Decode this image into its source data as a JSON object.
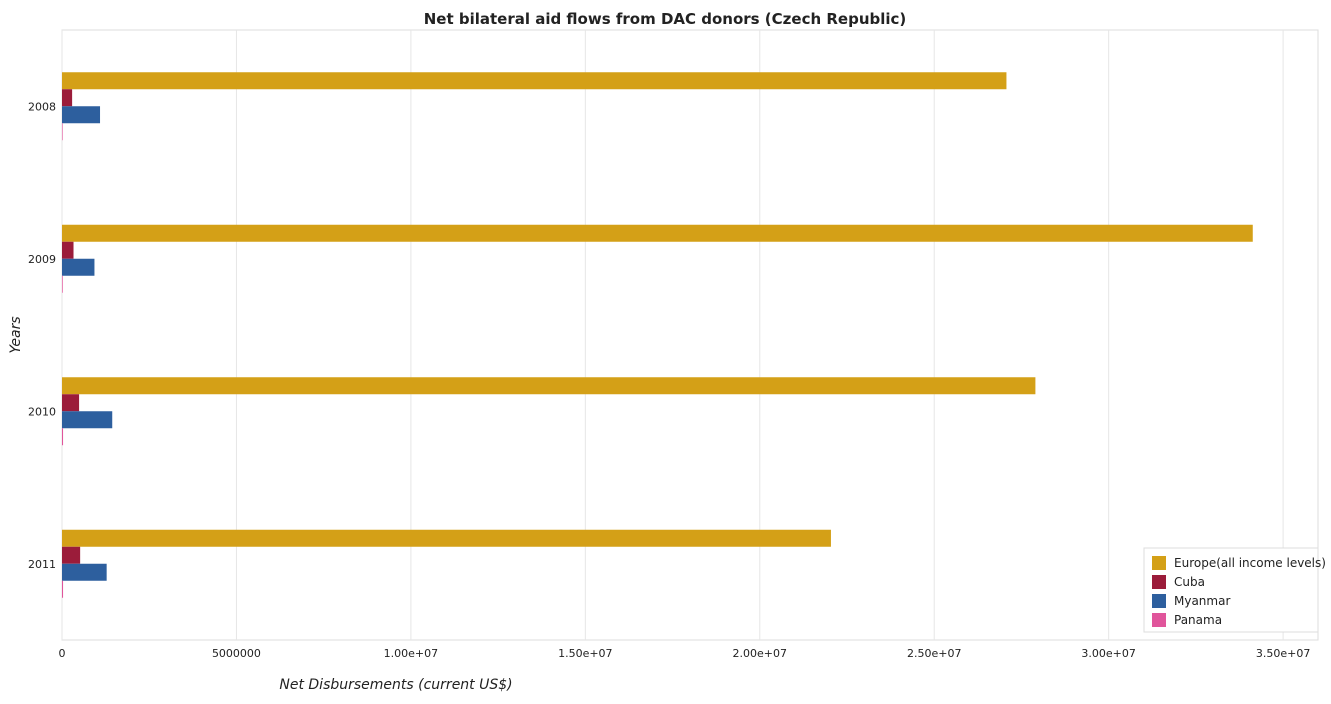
{
  "chart_data": {
    "type": "bar",
    "orientation": "horizontal",
    "title": "Net bilateral aid flows from DAC donors (Czech Republic)",
    "xlabel": "Net Disbursements (current US$)",
    "ylabel": "Years",
    "categories": [
      "2008",
      "2009",
      "2010",
      "2011"
    ],
    "xlim": [
      0,
      36000000
    ],
    "x_ticks": [
      0,
      5000000,
      10000000,
      15000000,
      20000000,
      25000000,
      30000000,
      35000000
    ],
    "x_tick_labels": [
      "0",
      "5000000",
      "1.00e+07",
      "1.50e+07",
      "2.00e+07",
      "2.50e+07",
      "3.00e+07",
      "3.50e+07"
    ],
    "grid": true,
    "legend_position": "bottom-right",
    "series": [
      {
        "name": "Europe(all income levels)",
        "color": "#d4a017",
        "values": [
          27070000,
          34130000,
          27900000,
          22040000
        ]
      },
      {
        "name": "Cuba",
        "color": "#9b1c3a",
        "values": [
          290000,
          330000,
          490000,
          520000
        ]
      },
      {
        "name": "Myanmar",
        "color": "#2d5f9e",
        "values": [
          1090000,
          930000,
          1440000,
          1280000
        ]
      },
      {
        "name": "Panama",
        "color": "#e0559b",
        "values": [
          10000,
          20000,
          30000,
          30000
        ]
      }
    ]
  }
}
